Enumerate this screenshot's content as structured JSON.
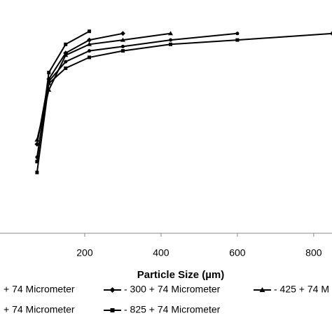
{
  "chart_data": {
    "type": "line",
    "xlabel": "Particle Size (µm)",
    "xlim": [
      -22,
      870
    ],
    "ylim": [
      0,
      100
    ],
    "xticks": [
      200,
      400,
      600,
      800
    ],
    "color": "#000000",
    "series": [
      {
        "name": "+ 74 Micrometer",
        "marker": "square",
        "x": [
          75,
          106,
          150,
          212
        ],
        "values": [
          33,
          74,
          87,
          93
        ]
      },
      {
        "name": "- 300 + 74 Micrometer",
        "marker": "diamond",
        "x": [
          75,
          106,
          150,
          212,
          300
        ],
        "values": [
          41,
          71,
          83,
          89,
          92
        ]
      },
      {
        "name": "- 425 + 74 M",
        "marker": "triangle",
        "x": [
          75,
          106,
          150,
          212,
          300,
          425
        ],
        "values": [
          43,
          66,
          82,
          87,
          89,
          92
        ]
      },
      {
        "name": "+ 74 Micrometer",
        "marker": "circle",
        "x": [
          75,
          106,
          150,
          212,
          300,
          425,
          600
        ],
        "values": [
          35,
          70,
          79,
          84,
          86,
          89,
          92
        ]
      },
      {
        "name": "- 825 + 74 Micrometer",
        "marker": "square",
        "x": [
          75,
          106,
          150,
          212,
          300,
          425,
          600,
          850
        ],
        "values": [
          28,
          69,
          76,
          81,
          84,
          87,
          89,
          92
        ]
      }
    ]
  }
}
